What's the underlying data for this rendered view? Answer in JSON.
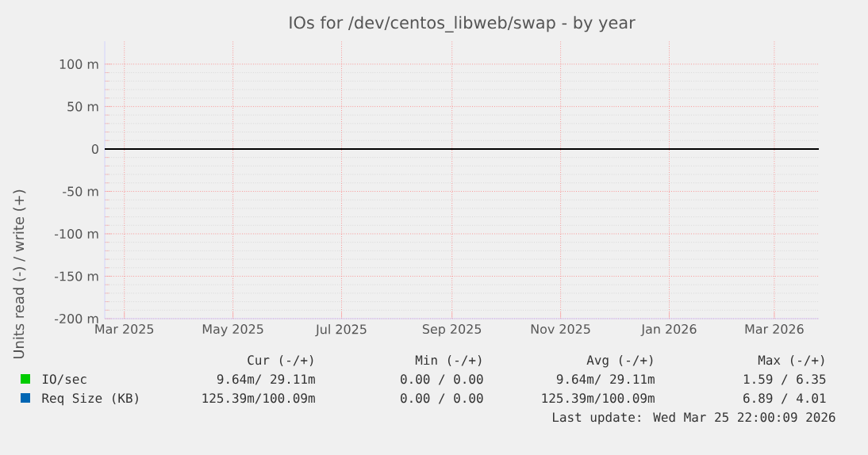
{
  "chart_data": {
    "type": "line",
    "title": "IOs for /dev/centos_libweb/swap - by year",
    "ylabel": "Units read (-) / write (+)",
    "series": [
      {
        "name": "IO/sec",
        "color": "#00cc00",
        "values": [
          null,
          null
        ]
      },
      {
        "name": "Req Size (KB)",
        "color": "#0066b3",
        "values": [
          null,
          null
        ]
      },
      {
        "color": "#000000",
        "values": [
          0,
          0
        ]
      }
    ],
    "x": [
      "2025-02-18",
      "2026-03-26"
    ],
    "xlim": [
      "2025-02-18",
      "2026-03-26"
    ],
    "xticks": [
      {
        "value": "2025-03-01",
        "label": "Mar 2025"
      },
      {
        "value": "2025-05-01",
        "label": "May 2025"
      },
      {
        "value": "2025-07-01",
        "label": "Jul 2025"
      },
      {
        "value": "2025-09-01",
        "label": "Sep 2025"
      },
      {
        "value": "2025-11-01",
        "label": "Nov 2025"
      },
      {
        "value": "2026-01-01",
        "label": "Jan 2026"
      },
      {
        "value": "2026-03-01",
        "label": "Mar 2026"
      }
    ],
    "ylim": [
      -200,
      127
    ],
    "yticks": [
      {
        "value": -200,
        "label": "-200 m"
      },
      {
        "value": -150,
        "label": "-150 m"
      },
      {
        "value": -100,
        "label": "-100 m"
      },
      {
        "value": -50,
        "label": "-50 m"
      },
      {
        "value": 0,
        "label": "0"
      },
      {
        "value": 50,
        "label": "50 m"
      },
      {
        "value": 100,
        "label": "100 m"
      }
    ],
    "grid": true,
    "legend": "bottom",
    "annotations": [
      "Cur (-/+)",
      "Min (-/+)",
      "Avg (-/+)",
      "Max (-/+)",
      "9.64m/ 29.11m",
      "0.00 /  0.00",
      "9.64m/ 29.11m",
      "1.59 /  6.35",
      "125.39m/100.09m",
      "0.00 /  0.00",
      "125.39m/100.09m",
      "6.89 /  4.01",
      "Last update: Wed Mar 25 22:00:09 2026"
    ]
  }
}
